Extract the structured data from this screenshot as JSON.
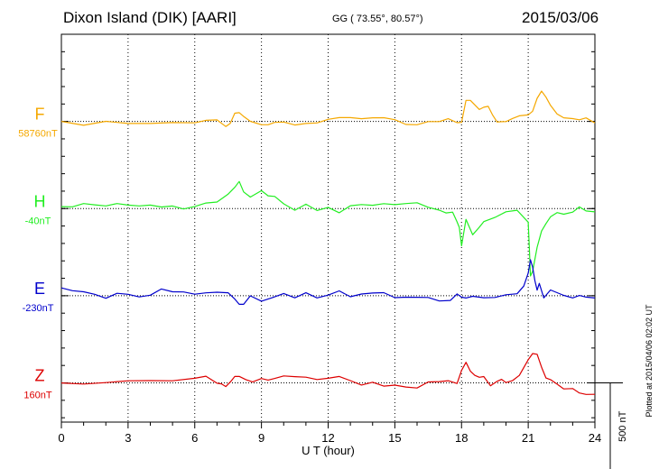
{
  "header": {
    "station": "Dixon Island (DIK)  [AARI]",
    "coords": "GG ( 73.55°,  80.57°)",
    "date": "2015/03/06"
  },
  "plotted_note": "Plotted at 2015/04/06 02:02 UT",
  "scale_label": "500 nT",
  "chart_data": {
    "type": "line",
    "title": "Dixon Island (DIK)  [AARI]",
    "xlabel": "U T (hour)",
    "ylabel": "",
    "xlim": [
      0,
      24
    ],
    "x_ticks": [
      0,
      3,
      6,
      9,
      12,
      15,
      18,
      21,
      24
    ],
    "x_tick_labels": [
      "0",
      "3",
      "6",
      "9",
      "12",
      "15",
      "18",
      "21",
      "24"
    ],
    "ylim_nT": [
      -1025,
      1200
    ],
    "scale_bar_nT": 500,
    "grid": true,
    "series": [
      {
        "name": "F",
        "baseline": "58760nT",
        "color": "#f5a800",
        "offset_nT": 700,
        "x": [
          0,
          1,
          2,
          3,
          4,
          5,
          6,
          6.5,
          7,
          7.2,
          7.4,
          7.6,
          7.8,
          8,
          8.2,
          8.5,
          9,
          9.3,
          9.6,
          10,
          10.5,
          11,
          11.5,
          12,
          12.5,
          13,
          13.5,
          14,
          14.5,
          15,
          15.5,
          16,
          16.5,
          17,
          17.4,
          17.8,
          18,
          18.2,
          18.4,
          18.6,
          18.8,
          19,
          19.2,
          19.4,
          19.6,
          19.8,
          20,
          20.3,
          20.6,
          21,
          21.2,
          21.4,
          21.6,
          21.8,
          22,
          22.3,
          22.6,
          23,
          23.3,
          23.6,
          24
        ],
        "values": [
          0,
          -3,
          2,
          0,
          -4,
          3,
          5,
          10,
          -5,
          -20,
          -30,
          -15,
          30,
          50,
          25,
          10,
          0,
          -10,
          8,
          3,
          -5,
          0,
          5,
          0,
          4,
          8,
          5,
          0,
          4,
          -2,
          3,
          -4,
          5,
          8,
          20,
          5,
          15,
          140,
          110,
          90,
          60,
          80,
          75,
          20,
          -10,
          15,
          5,
          28,
          35,
          40,
          65,
          135,
          170,
          130,
          80,
          40,
          10,
          0,
          -5,
          3,
          -5
        ]
      },
      {
        "name": "H",
        "baseline": "-40nT",
        "color": "#22ee22",
        "offset_nT": 200,
        "x": [
          0,
          0.5,
          1,
          1.5,
          2,
          2.5,
          3,
          3.5,
          4,
          4.5,
          5,
          5.5,
          6,
          6.5,
          7,
          7.5,
          7.8,
          8,
          8.2,
          8.5,
          9,
          9.3,
          9.6,
          10,
          10.5,
          11,
          11.5,
          12,
          12.5,
          13,
          13.5,
          14,
          14.5,
          15,
          15.5,
          16,
          16.5,
          17,
          17.3,
          17.6,
          17.8,
          17.9,
          18,
          18.2,
          18.5,
          18.8,
          19,
          19.5,
          20,
          20.5,
          21,
          21.05,
          21.1,
          21.2,
          21.4,
          21.6,
          21.8,
          22,
          22.3,
          22.6,
          23,
          23.3,
          23.6,
          24
        ],
        "values": [
          15,
          5,
          20,
          10,
          0,
          25,
          15,
          5,
          10,
          20,
          15,
          10,
          25,
          40,
          55,
          90,
          110,
          140,
          95,
          60,
          100,
          70,
          50,
          40,
          10,
          30,
          5,
          10,
          -5,
          20,
          30,
          10,
          15,
          10,
          20,
          15,
          0,
          -10,
          -20,
          -15,
          -60,
          -90,
          -200,
          -60,
          -140,
          -90,
          -80,
          -70,
          -30,
          -10,
          -80,
          -240,
          -400,
          -350,
          -220,
          -110,
          -80,
          -40,
          -10,
          -20,
          -10,
          -5,
          -15,
          -20
        ]
      },
      {
        "name": "E",
        "baseline": "-230nT",
        "color": "#0000cc",
        "offset_nT": -300,
        "x": [
          0,
          0.5,
          1,
          1.5,
          2,
          2.5,
          3,
          3.5,
          4,
          4.5,
          5,
          5.5,
          6,
          6.5,
          7,
          7.5,
          7.8,
          8,
          8.2,
          8.5,
          9,
          9.5,
          10,
          10.5,
          11,
          11.5,
          12,
          12.5,
          13,
          13.5,
          14,
          14.5,
          15,
          15.5,
          16,
          16.5,
          17,
          17.5,
          17.8,
          18,
          18.2,
          18.5,
          19,
          19.5,
          20,
          20.5,
          20.8,
          21,
          21.1,
          21.2,
          21.3,
          21.4,
          21.5,
          21.7,
          22,
          22.3,
          22.6,
          23,
          23.3,
          23.6,
          24
        ],
        "values": [
          25,
          10,
          30,
          15,
          5,
          25,
          20,
          5,
          15,
          30,
          10,
          20,
          5,
          0,
          15,
          10,
          -20,
          -40,
          -30,
          10,
          -20,
          0,
          15,
          -10,
          5,
          -15,
          -5,
          10,
          -15,
          5,
          -5,
          10,
          -10,
          0,
          -5,
          5,
          -15,
          -10,
          20,
          -20,
          -25,
          -15,
          -30,
          -20,
          -5,
          10,
          60,
          150,
          220,
          180,
          100,
          40,
          80,
          -10,
          20,
          10,
          0,
          -20,
          -15,
          -10,
          -15
        ]
      },
      {
        "name": "Z",
        "baseline": "160nT",
        "color": "#dd0000",
        "offset_nT": -800,
        "x": [
          0,
          1,
          2,
          3,
          4,
          5,
          6,
          6.5,
          7,
          7.2,
          7.4,
          7.6,
          7.8,
          8,
          8.3,
          8.6,
          9,
          9.3,
          9.6,
          10,
          10.5,
          11,
          11.5,
          12,
          12.5,
          13,
          13.5,
          14,
          14.5,
          15,
          15.5,
          16,
          16.5,
          17,
          17.4,
          17.8,
          18,
          18.2,
          18.4,
          18.6,
          18.8,
          19,
          19.3,
          19.6,
          19.8,
          20,
          20.3,
          20.6,
          21,
          21.2,
          21.4,
          21.6,
          21.8,
          22,
          22.3,
          22.6,
          23,
          23.3,
          23.6,
          24
        ],
        "values": [
          5,
          2,
          8,
          10,
          5,
          10,
          20,
          20,
          -5,
          -25,
          -15,
          20,
          50,
          40,
          20,
          10,
          35,
          25,
          8,
          20,
          18,
          25,
          15,
          10,
          20,
          15,
          8,
          5,
          -2,
          -5,
          -8,
          -12,
          -5,
          -10,
          0,
          -10,
          70,
          100,
          60,
          30,
          40,
          50,
          -15,
          10,
          25,
          10,
          20,
          30,
          120,
          160,
          150,
          80,
          20,
          10,
          -10,
          -20,
          -30,
          -45,
          -55,
          -45
        ]
      }
    ]
  }
}
